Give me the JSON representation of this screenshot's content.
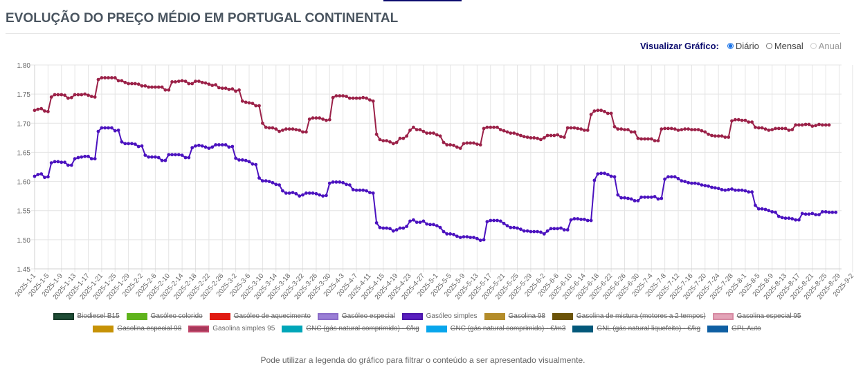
{
  "header": {
    "title": "EVOLUÇÃO DO PREÇO MÉDIO EM PORTUGAL CONTINENTAL"
  },
  "view_selector": {
    "label": "Visualizar Gráfico:",
    "options": [
      {
        "label": "Diário",
        "selected": true,
        "disabled": false
      },
      {
        "label": "Mensal",
        "selected": false,
        "disabled": false
      },
      {
        "label": "Anual",
        "selected": false,
        "disabled": true
      }
    ]
  },
  "legend_rows": [
    [
      {
        "label": "Biodiesel B15",
        "color": "#1f4d36",
        "border": "#163a28",
        "hidden": true
      },
      {
        "label": "Gasóleo colorido",
        "color": "#5fb31c",
        "border": "#5fb31c",
        "hidden": true
      },
      {
        "label": "Gasóleo de aquecimento",
        "color": "#e01a12",
        "border": "#e01a12",
        "hidden": true
      },
      {
        "label": "Gasóleo especial",
        "color": "#9a7fd6",
        "border": "#8a6cc8",
        "hidden": true
      },
      {
        "label": "Gasóleo simples",
        "color": "#5a1fc0",
        "border": "#4a15a8",
        "hidden": false
      },
      {
        "label": "Gasolina 98",
        "color": "#b38c2a",
        "border": "#b38c2a",
        "hidden": true
      },
      {
        "label": "Gasolina de mistura (motores a 2 tempos)",
        "color": "#6b5308",
        "border": "#6b5308",
        "hidden": true
      },
      {
        "label": "Gasolina especial 95",
        "color": "#e3a4b8",
        "border": "#d68aa2",
        "hidden": true
      }
    ],
    [
      {
        "label": "Gasolina especial 98",
        "color": "#c69206",
        "border": "#c69206",
        "hidden": true
      },
      {
        "label": "Gasolina simples 95",
        "color": "#a8385a",
        "border": "#c0466a",
        "hidden": false
      },
      {
        "label": "GNC (gás natural comprimido) - €/kg",
        "color": "#00a6b8",
        "border": "#00a6b8",
        "hidden": true
      },
      {
        "label": "GNC (gás natural comprimido) - €/m3",
        "color": "#08a6ec",
        "border": "#08a6ec",
        "hidden": true
      },
      {
        "label": "GNL (gás natural liquefeito) - €/kg",
        "color": "#03587a",
        "border": "#03587a",
        "hidden": true
      },
      {
        "label": "GPL Auto",
        "color": "#0e5fa3",
        "border": "#0e5fa3",
        "hidden": true
      }
    ]
  ],
  "footer_note": "Pode utilizar a legenda do gráfico para filtrar o conteúdo a ser apresentado visualmente.",
  "chart_data": {
    "type": "line",
    "title": "",
    "xlabel": "",
    "ylabel": "",
    "start_date": "2025-1-1",
    "end_date": "2025-9-2",
    "x_tick_every_days": 4,
    "x_tick_labels": [
      "2025-1-1",
      "2025-1-5",
      "2025-1-9",
      "2025-1-13",
      "2025-1-17",
      "2025-1-21",
      "2025-1-25",
      "2025-1-29",
      "2025-2-2",
      "2025-2-6",
      "2025-2-10",
      "2025-2-14",
      "2025-2-18",
      "2025-2-22",
      "2025-2-26",
      "2025-3-2",
      "2025-3-6",
      "2025-3-10",
      "2025-3-14",
      "2025-3-18",
      "2025-3-22",
      "2025-3-26",
      "2025-3-30",
      "2025-4-3",
      "2025-4-7",
      "2025-4-11",
      "2025-4-15",
      "2025-4-19",
      "2025-4-23",
      "2025-4-27",
      "2025-5-1",
      "2025-5-5",
      "2025-5-9",
      "2025-5-13",
      "2025-5-17",
      "2025-5-21",
      "2025-5-25",
      "2025-5-29",
      "2025-6-2",
      "2025-6-6",
      "2025-6-10",
      "2025-6-14",
      "2025-6-18",
      "2025-6-22",
      "2025-6-26",
      "2025-6-30",
      "2025-7-4",
      "2025-7-8",
      "2025-7-12",
      "2025-7-16",
      "2025-7-20",
      "2025-7-24",
      "2025-7-28",
      "2025-8-1",
      "2025-8-5",
      "2025-8-9",
      "2025-8-13",
      "2025-8-17",
      "2025-8-21",
      "2025-8-25",
      "2025-8-29",
      "2025-9-2"
    ],
    "y_ticks": [
      "1.45",
      "1.50",
      "1.55",
      "1.60",
      "1.65",
      "1.70",
      "1.75",
      "1.80"
    ],
    "ylim": [
      1.45,
      1.8
    ],
    "grid": true,
    "legend_position": "bottom",
    "series": [
      {
        "name": "Gasolina simples 95",
        "color": "#9b2148",
        "values": [
          1.722,
          1.724,
          1.725,
          1.721,
          1.72,
          1.745,
          1.749,
          1.749,
          1.749,
          1.748,
          1.743,
          1.744,
          1.749,
          1.749,
          1.749,
          1.75,
          1.748,
          1.746,
          1.745,
          1.775,
          1.778,
          1.778,
          1.778,
          1.778,
          1.778,
          1.773,
          1.773,
          1.77,
          1.768,
          1.768,
          1.768,
          1.767,
          1.764,
          1.764,
          1.762,
          1.762,
          1.762,
          1.762,
          1.762,
          1.757,
          1.757,
          1.771,
          1.771,
          1.772,
          1.773,
          1.772,
          1.768,
          1.768,
          1.772,
          1.772,
          1.77,
          1.769,
          1.767,
          1.765,
          1.766,
          1.761,
          1.76,
          1.76,
          1.758,
          1.759,
          1.755,
          1.757,
          1.738,
          1.736,
          1.735,
          1.734,
          1.73,
          1.73,
          1.7,
          1.693,
          1.692,
          1.692,
          1.69,
          1.686,
          1.688,
          1.69,
          1.69,
          1.69,
          1.689,
          1.688,
          1.685,
          1.685,
          1.707,
          1.709,
          1.709,
          1.709,
          1.707,
          1.705,
          1.706,
          1.744,
          1.747,
          1.747,
          1.747,
          1.746,
          1.743,
          1.743,
          1.743,
          1.743,
          1.744,
          1.743,
          1.74,
          1.738,
          1.681,
          1.672,
          1.67,
          1.67,
          1.668,
          1.665,
          1.667,
          1.674,
          1.674,
          1.678,
          1.688,
          1.693,
          1.689,
          1.689,
          1.686,
          1.683,
          1.683,
          1.683,
          1.68,
          1.678,
          1.667,
          1.663,
          1.663,
          1.662,
          1.659,
          1.657,
          1.665,
          1.666,
          1.666,
          1.666,
          1.664,
          1.663,
          1.691,
          1.693,
          1.693,
          1.693,
          1.693,
          1.689,
          1.687,
          1.685,
          1.683,
          1.683,
          1.681,
          1.679,
          1.677,
          1.676,
          1.675,
          1.675,
          1.674,
          1.672,
          1.675,
          1.679,
          1.679,
          1.679,
          1.68,
          1.677,
          1.676,
          1.692,
          1.692,
          1.692,
          1.691,
          1.69,
          1.688,
          1.688,
          1.715,
          1.721,
          1.722,
          1.722,
          1.72,
          1.717,
          1.717,
          1.694,
          1.69,
          1.69,
          1.689,
          1.689,
          1.685,
          1.685,
          1.674,
          1.673,
          1.673,
          1.673,
          1.673,
          1.67,
          1.67,
          1.69,
          1.691,
          1.691,
          1.691,
          1.69,
          1.688,
          1.689,
          1.69,
          1.69,
          1.689,
          1.689,
          1.689,
          1.687,
          1.685,
          1.681,
          1.679,
          1.678,
          1.678,
          1.678,
          1.676,
          1.676,
          1.704,
          1.706,
          1.706,
          1.705,
          1.705,
          1.702,
          1.702,
          1.693,
          1.692,
          1.692,
          1.69,
          1.688,
          1.689,
          1.691,
          1.691,
          1.691,
          1.691,
          1.688,
          1.689,
          1.697,
          1.697,
          1.697,
          1.698,
          1.698,
          1.695,
          1.696,
          1.698,
          1.697,
          1.697,
          1.697
        ]
      },
      {
        "name": "Gasóleo simples",
        "color": "#4b12bf",
        "values": [
          1.609,
          1.612,
          1.613,
          1.607,
          1.608,
          1.632,
          1.634,
          1.634,
          1.633,
          1.633,
          1.628,
          1.628,
          1.639,
          1.641,
          1.642,
          1.643,
          1.643,
          1.639,
          1.639,
          1.686,
          1.692,
          1.692,
          1.692,
          1.692,
          1.687,
          1.688,
          1.668,
          1.665,
          1.665,
          1.665,
          1.664,
          1.66,
          1.661,
          1.645,
          1.642,
          1.642,
          1.642,
          1.641,
          1.636,
          1.636,
          1.646,
          1.646,
          1.646,
          1.646,
          1.645,
          1.641,
          1.641,
          1.658,
          1.661,
          1.662,
          1.661,
          1.659,
          1.657,
          1.659,
          1.663,
          1.663,
          1.663,
          1.663,
          1.659,
          1.66,
          1.64,
          1.637,
          1.637,
          1.636,
          1.634,
          1.63,
          1.629,
          1.606,
          1.601,
          1.601,
          1.6,
          1.598,
          1.595,
          1.594,
          1.584,
          1.58,
          1.58,
          1.581,
          1.579,
          1.575,
          1.577,
          1.58,
          1.58,
          1.58,
          1.579,
          1.577,
          1.575,
          1.576,
          1.597,
          1.599,
          1.599,
          1.599,
          1.598,
          1.595,
          1.594,
          1.586,
          1.585,
          1.585,
          1.585,
          1.584,
          1.581,
          1.58,
          1.529,
          1.521,
          1.52,
          1.52,
          1.519,
          1.515,
          1.517,
          1.52,
          1.52,
          1.523,
          1.532,
          1.534,
          1.53,
          1.53,
          1.532,
          1.527,
          1.526,
          1.526,
          1.524,
          1.521,
          1.514,
          1.51,
          1.51,
          1.509,
          1.506,
          1.504,
          1.505,
          1.505,
          1.504,
          1.504,
          1.502,
          1.499,
          1.5,
          1.531,
          1.533,
          1.533,
          1.533,
          1.532,
          1.528,
          1.524,
          1.521,
          1.521,
          1.52,
          1.518,
          1.515,
          1.515,
          1.514,
          1.514,
          1.514,
          1.513,
          1.51,
          1.515,
          1.519,
          1.519,
          1.519,
          1.52,
          1.517,
          1.517,
          1.534,
          1.536,
          1.536,
          1.535,
          1.535,
          1.533,
          1.533,
          1.602,
          1.613,
          1.614,
          1.614,
          1.612,
          1.609,
          1.608,
          1.577,
          1.572,
          1.572,
          1.571,
          1.57,
          1.567,
          1.567,
          1.573,
          1.573,
          1.573,
          1.573,
          1.574,
          1.57,
          1.571,
          1.604,
          1.608,
          1.608,
          1.608,
          1.605,
          1.601,
          1.6,
          1.598,
          1.597,
          1.597,
          1.596,
          1.594,
          1.593,
          1.592,
          1.59,
          1.589,
          1.588,
          1.586,
          1.585,
          1.586,
          1.587,
          1.585,
          1.585,
          1.585,
          1.584,
          1.582,
          1.582,
          1.559,
          1.553,
          1.553,
          1.552,
          1.55,
          1.548,
          1.547,
          1.54,
          1.538,
          1.537,
          1.537,
          1.536,
          1.534,
          1.534,
          1.545,
          1.544,
          1.544,
          1.545,
          1.543,
          1.543,
          1.548,
          1.548,
          1.547,
          1.547,
          1.547
        ]
      }
    ]
  }
}
